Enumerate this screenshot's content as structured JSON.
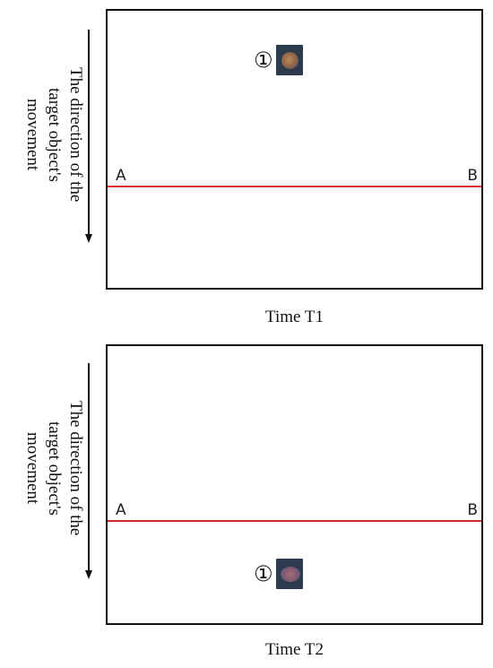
{
  "panels": [
    {
      "caption": "Time T1",
      "direction_label_lines": [
        "The direction of the",
        "target object's",
        "movement"
      ],
      "point_a": "A",
      "point_b": "B",
      "target_marker": "①"
    },
    {
      "caption": "Time T2",
      "direction_label_lines": [
        "The direction of the",
        "target object's",
        "movement"
      ],
      "point_a": "A",
      "point_b": "B",
      "target_marker": "①"
    }
  ],
  "colors": {
    "line": "#d42a2a",
    "frame": "#111111",
    "thumb_bg": "#2b3a4d"
  }
}
